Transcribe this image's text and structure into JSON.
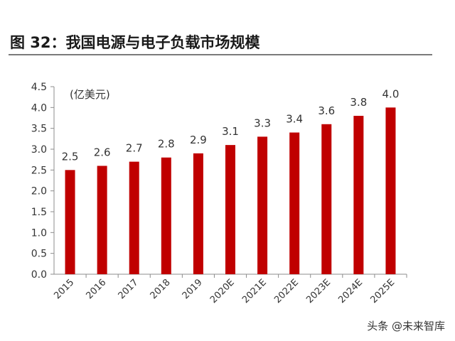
{
  "figure": {
    "title": "图 32：我国电源与电子负载市场规模",
    "watermark": "头条 @未来智库"
  },
  "colors": {
    "bar": "#c00000",
    "axis": "#8c8c8c",
    "text": "#333333"
  },
  "chart_data": {
    "type": "bar",
    "title": "",
    "xlabel": "",
    "ylabel": "(亿美元)",
    "ylim": [
      0,
      4.5
    ],
    "yticks": [
      "0.0",
      "0.5",
      "1.0",
      "1.5",
      "2.0",
      "2.5",
      "3.0",
      "3.5",
      "4.0",
      "4.5"
    ],
    "grid": false,
    "categories": [
      "2015",
      "2016",
      "2017",
      "2018",
      "2019",
      "2020E",
      "2021E",
      "2022E",
      "2023E",
      "2024E",
      "2025E"
    ],
    "values": [
      2.5,
      2.6,
      2.7,
      2.8,
      2.9,
      3.1,
      3.3,
      3.4,
      3.6,
      3.8,
      4.0
    ],
    "value_labels": [
      "2.5",
      "2.6",
      "2.7",
      "2.8",
      "2.9",
      "3.1",
      "3.3",
      "3.4",
      "3.6",
      "3.8",
      "4.0"
    ]
  }
}
